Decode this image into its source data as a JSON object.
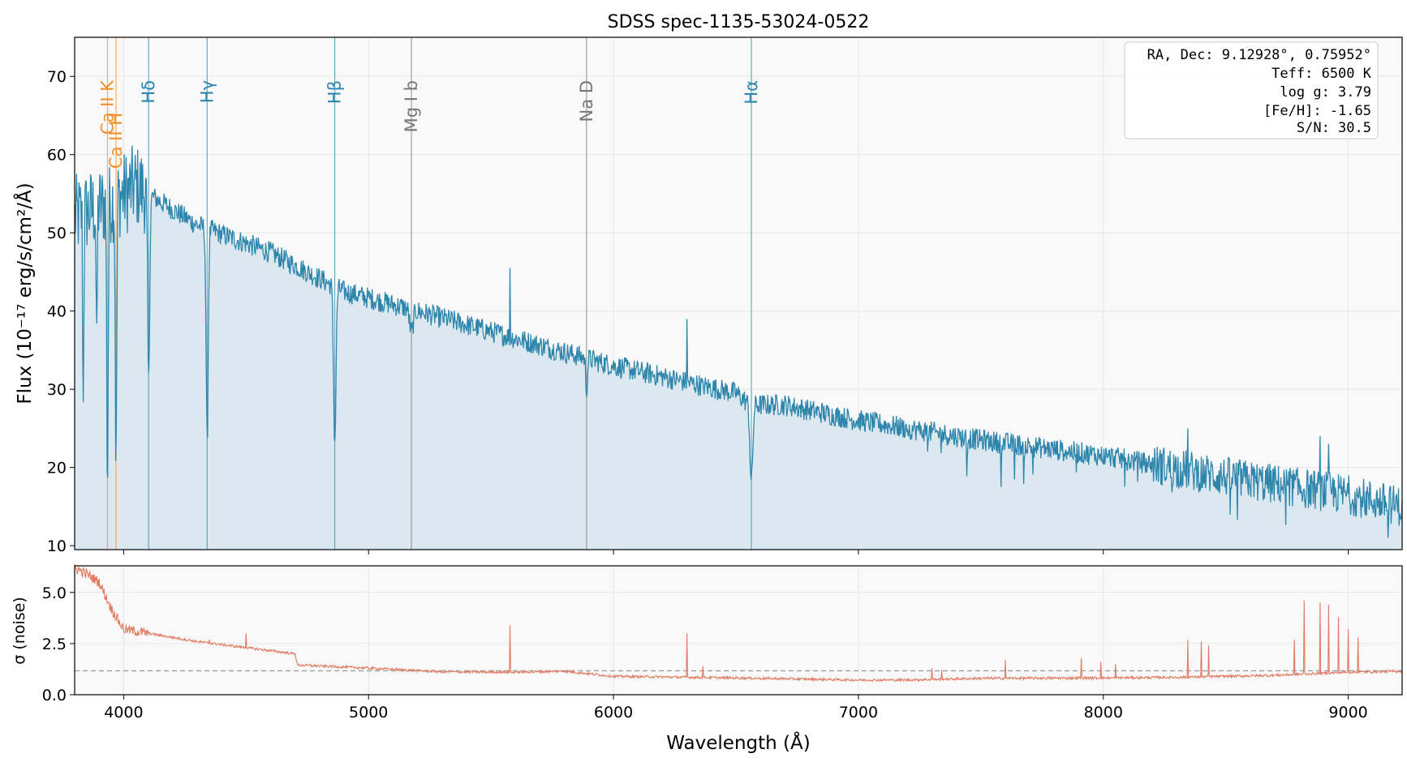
{
  "chart_data": [
    {
      "type": "line",
      "title": "SDSS spec-1135-53024-0522",
      "xlabel": "",
      "ylabel": "Flux (10⁻¹⁷ erg/s/cm²/Å)",
      "xlim": [
        3800,
        9220
      ],
      "ylim": [
        9.5,
        75
      ],
      "yticks": [
        10,
        20,
        30,
        40,
        50,
        60,
        70
      ],
      "xticks": [
        4000,
        5000,
        6000,
        7000,
        8000,
        9000
      ],
      "grid": true,
      "fill_under": true,
      "colors": {
        "line": "#2f86ad",
        "fill": "#dbe8ef",
        "background": "#f9f9f9",
        "grid": "#e6e6e6"
      },
      "series": [
        {
          "continuum_anchors": [
            [
              3800,
              52
            ],
            [
              3950,
              54
            ],
            [
              4050,
              56
            ],
            [
              4300,
              51
            ],
            [
              4600,
              47.5
            ],
            [
              4900,
              42.5
            ],
            [
              5200,
              40
            ],
            [
              5600,
              36.5
            ],
            [
              6000,
              33
            ],
            [
              6500,
              29.5
            ],
            [
              6560,
              28
            ],
            [
              6700,
              28
            ],
            [
              7000,
              26
            ],
            [
              7500,
              23.5
            ],
            [
              8000,
              21.5
            ],
            [
              8500,
              18.8
            ],
            [
              9000,
              16.5
            ],
            [
              9220,
              15
            ]
          ],
          "absorption_features": [
            {
              "center": 3934,
              "depth": 36,
              "width": 4
            },
            {
              "center": 3969,
              "depth": 35,
              "width": 4
            },
            {
              "center": 4102,
              "depth": 24,
              "width": 6
            },
            {
              "center": 4341,
              "depth": 27,
              "width": 6
            },
            {
              "center": 4862,
              "depth": 20,
              "width": 7
            },
            {
              "center": 5175,
              "depth": 3,
              "width": 10
            },
            {
              "center": 5890,
              "depth": 4,
              "width": 5
            },
            {
              "center": 6563,
              "depth": 10,
              "width": 8
            },
            {
              "center": 3890,
              "depth": 20,
              "width": 3
            },
            {
              "center": 3835,
              "depth": 25,
              "width": 3
            }
          ],
          "spikes": [
            [
              5577,
              45.5
            ],
            [
              6300,
              39
            ],
            [
              6364,
              31
            ],
            [
              8345,
              25
            ],
            [
              8885,
              24
            ],
            [
              8920,
              23
            ]
          ]
        }
      ],
      "annotations": {
        "lines": [
          {
            "label": "Ca II K",
            "x": 3934,
            "color": "#f28e2b"
          },
          {
            "label": "Ca II H",
            "x": 3969,
            "color": "#f28e2b"
          },
          {
            "label": "Hδ",
            "x": 4102,
            "color": "#2f86ad"
          },
          {
            "label": "Hγ",
            "x": 4341,
            "color": "#2f86ad"
          },
          {
            "label": "Hβ",
            "x": 4862,
            "color": "#2f86ad"
          },
          {
            "label": "Mg I b",
            "x": 5175,
            "color": "#777777"
          },
          {
            "label": "Na D",
            "x": 5890,
            "color": "#777777"
          },
          {
            "label": "Hα",
            "x": 6563,
            "color": "#2f86ad"
          }
        ],
        "info_box": [
          "RA, Dec: 9.12928°, 0.75952°",
          "Teff: 6500 K",
          "log g: 3.79",
          "[Fe/H]: -1.65",
          "S/N: 30.5"
        ]
      }
    },
    {
      "type": "line",
      "title": "",
      "xlabel": "Wavelength (Å)",
      "ylabel": "σ (noise)",
      "xlim": [
        3800,
        9220
      ],
      "ylim": [
        0,
        6.3
      ],
      "yticks": [
        0.0,
        2.5,
        5.0
      ],
      "ytick_labels": [
        "0.0",
        "2.5",
        "5.0"
      ],
      "xticks": [
        4000,
        5000,
        6000,
        7000,
        8000,
        9000
      ],
      "xtick_labels": [
        "4000",
        "5000",
        "6000",
        "7000",
        "8000",
        "9000"
      ],
      "grid": true,
      "reference_line": {
        "y": 1.17,
        "style": "dashed",
        "color": "#999999"
      },
      "colors": {
        "line": "#e07b62",
        "background": "#f9f9f9"
      },
      "series": [
        {
          "anchors": [
            [
              3800,
              6.2
            ],
            [
              3850,
              5.9
            ],
            [
              3900,
              5.5
            ],
            [
              3950,
              4.2
            ],
            [
              4000,
              3.2
            ],
            [
              4100,
              3.0
            ],
            [
              4300,
              2.6
            ],
            [
              4500,
              2.3
            ],
            [
              4700,
              2.0
            ],
            [
              4710,
              1.45
            ],
            [
              5000,
              1.3
            ],
            [
              5300,
              1.12
            ],
            [
              5600,
              1.1
            ],
            [
              5800,
              1.15
            ],
            [
              6000,
              0.9
            ],
            [
              6500,
              0.82
            ],
            [
              7000,
              0.72
            ],
            [
              7200,
              0.72
            ],
            [
              7500,
              0.8
            ],
            [
              8000,
              0.82
            ],
            [
              8300,
              0.85
            ],
            [
              8700,
              0.95
            ],
            [
              9000,
              1.1
            ],
            [
              9220,
              1.15
            ]
          ],
          "spikes": [
            [
              5577,
              3.4
            ],
            [
              6300,
              3.0
            ],
            [
              6364,
              1.4
            ],
            [
              8345,
              2.7
            ],
            [
              8400,
              2.6
            ],
            [
              8430,
              2.4
            ],
            [
              8820,
              4.6
            ],
            [
              8885,
              4.5
            ],
            [
              8920,
              4.4
            ],
            [
              8960,
              3.8
            ],
            [
              9000,
              3.2
            ],
            [
              9040,
              2.8
            ],
            [
              8780,
              2.7
            ],
            [
              7600,
              1.7
            ],
            [
              7910,
              1.8
            ],
            [
              7990,
              1.6
            ],
            [
              8050,
              1.5
            ],
            [
              7300,
              1.3
            ],
            [
              7340,
              1.2
            ],
            [
              4350,
              2.7
            ],
            [
              4500,
              3.0
            ]
          ]
        }
      ]
    }
  ]
}
